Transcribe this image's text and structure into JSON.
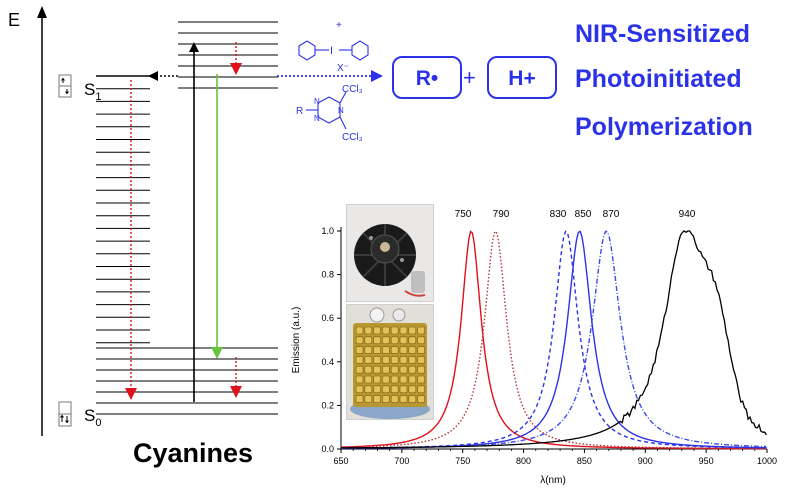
{
  "energy_label": "E",
  "states": {
    "s1": "S",
    "s1_sub": "1",
    "s0": "S",
    "s0_sub": "0"
  },
  "cyanines_label": "Cyanines",
  "products": {
    "radical": "R•",
    "plus": "+",
    "proton": "H+"
  },
  "title_lines": [
    "NIR-Sensitized",
    "Photoinitiated",
    "Polymerization"
  ],
  "iodonium": {
    "charge": "+",
    "atom": "I",
    "counterion": "X⁻"
  },
  "triazine": {
    "r_group": "R",
    "n_atom": "N",
    "substituent": "CCl₃"
  },
  "colors": {
    "blue": "#2b32e8",
    "red": "#e0111a",
    "green": "#69c23c",
    "dark_red": "#b2343b",
    "black": "#000000"
  },
  "chart_data": {
    "type": "line",
    "xlabel": "λ(nm)",
    "ylabel": "Emission (a.u.)",
    "xlim": [
      650,
      1000
    ],
    "ylim": [
      0,
      1.0
    ],
    "xticks": [
      650,
      700,
      750,
      800,
      850,
      900,
      950,
      1000
    ],
    "yticks": [
      "0.0",
      "0.2",
      "0.4",
      "0.6",
      "0.8",
      "1.0"
    ],
    "peak_labels": [
      "750",
      "790",
      "830",
      "850",
      "870",
      "940"
    ],
    "series": [
      {
        "peak": 757,
        "width": 10,
        "color": "#e0111a",
        "style": "solid"
      },
      {
        "peak": 777,
        "width": 11,
        "color": "#b2343b",
        "style": "dotted"
      },
      {
        "peak": 835,
        "width": 12,
        "color": "#2b32e8",
        "style": "dashed"
      },
      {
        "peak": 846,
        "width": 12,
        "color": "#2b32e8",
        "style": "solid"
      },
      {
        "peak": 868,
        "width": 14,
        "color": "#3c4be8",
        "style": "dashdot"
      },
      {
        "peak": 932,
        "width": 20,
        "color": "#000000",
        "style": "noisy"
      }
    ]
  }
}
